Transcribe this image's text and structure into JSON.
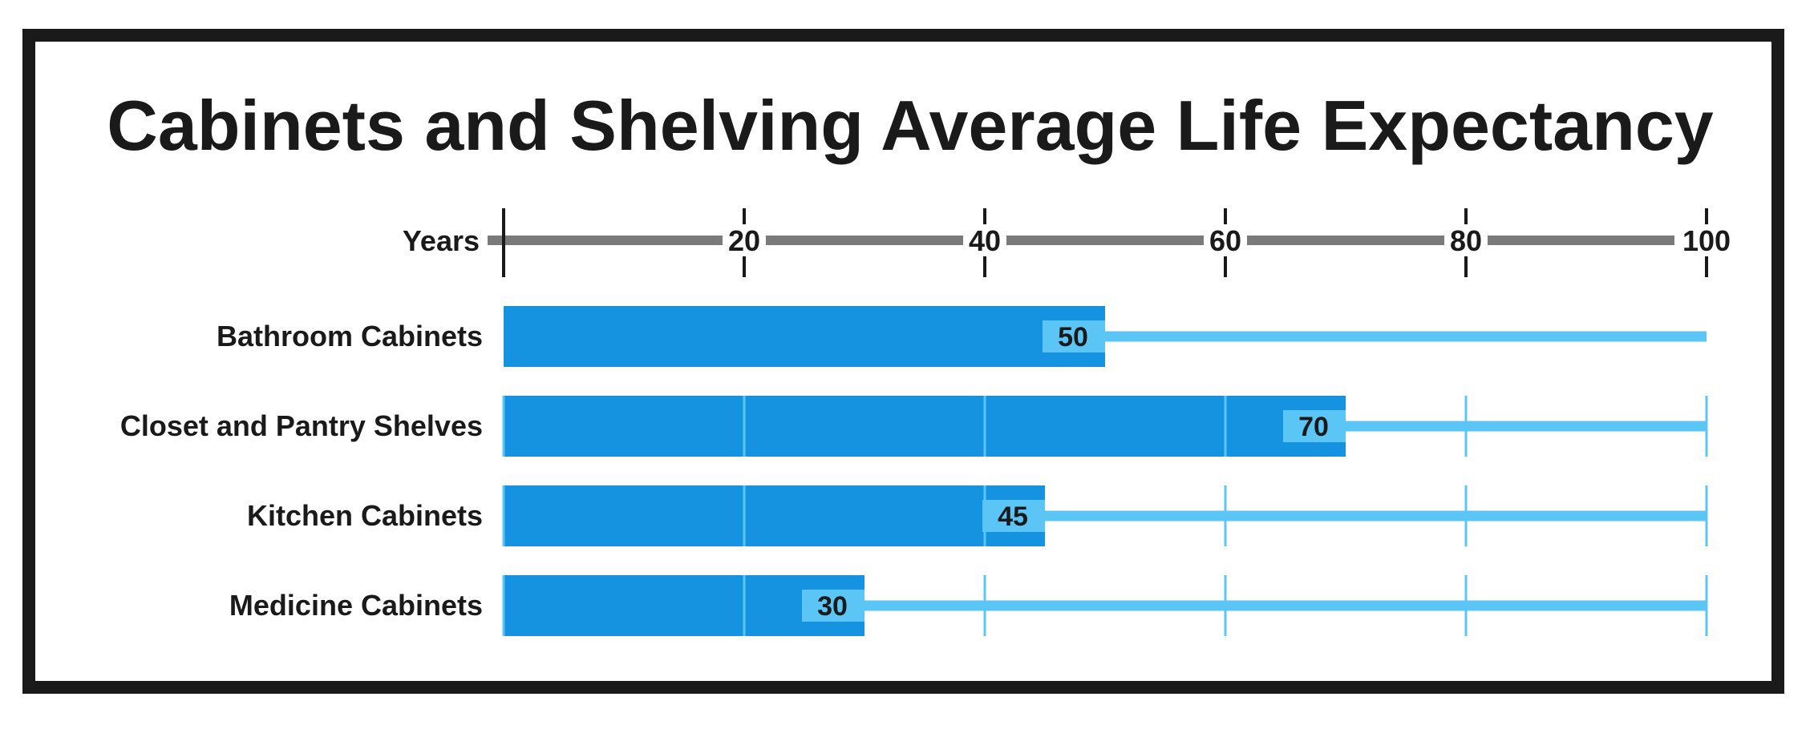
{
  "colors": {
    "frame": "#1a1a1a",
    "bar": "#1592e0",
    "track": "#5bc5f5",
    "axis": "#7a7a7a",
    "label_box": "#5bc5f5",
    "text": "#1a1a1a"
  },
  "chart_data": {
    "type": "bar",
    "orientation": "horizontal",
    "title": "Cabinets and Shelving Average Life Expectancy",
    "xlabel": "Years",
    "ylabel": "",
    "xlim": [
      0,
      100
    ],
    "x_ticks": [
      0,
      20,
      40,
      60,
      80,
      100
    ],
    "x_tick_labels": [
      "",
      "20",
      "40",
      "60",
      "80",
      "100"
    ],
    "categories": [
      "Bathroom Cabinets",
      "Closet and Pantry Shelves",
      "Kitchen Cabinets",
      "Medicine Cabinets"
    ],
    "values": [
      50,
      70,
      45,
      30
    ],
    "value_labels": [
      "50",
      "70",
      "45",
      "30"
    ],
    "axis_position": "top",
    "grid": true,
    "legend": "none"
  }
}
